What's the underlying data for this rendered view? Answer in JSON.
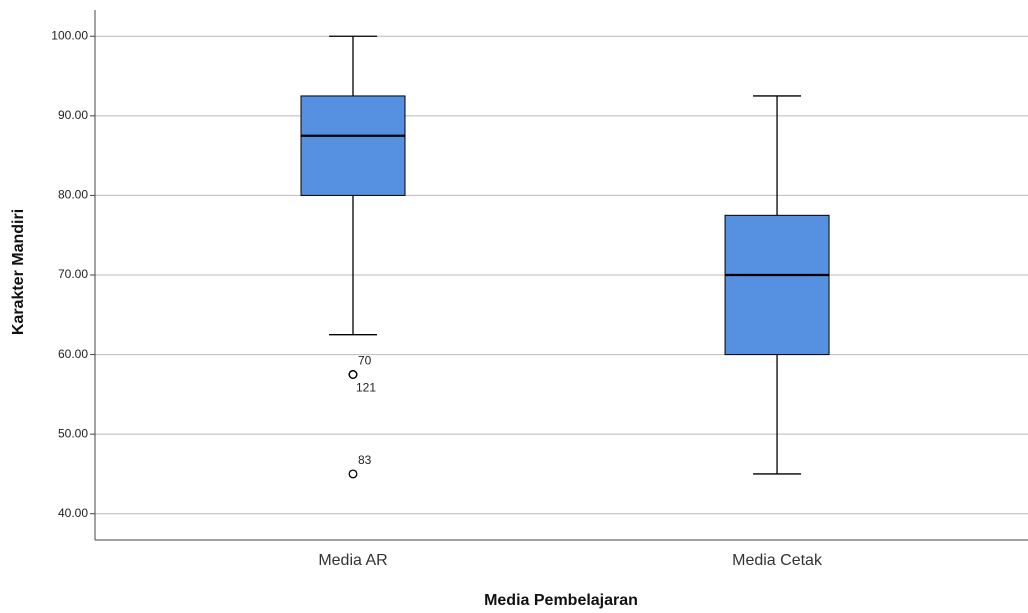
{
  "chart_data": {
    "type": "box",
    "x_label": "Media Pembelajaran",
    "y_label": "Karakter Mandiri",
    "categories": [
      "Media AR",
      "Media Cetak"
    ],
    "color": "#5591e0",
    "boxes": [
      {
        "min": 62.5,
        "q1": 80,
        "median": 87.5,
        "q3": 92.5,
        "max": 100,
        "outliers": [
          {
            "value": 57.5,
            "label": "70"
          },
          {
            "value": 57.5,
            "label": "121"
          },
          {
            "value": 45,
            "label": "83"
          }
        ]
      },
      {
        "min": 45,
        "q1": 60,
        "median": 70,
        "q3": 77.5,
        "max": 92.5,
        "outliers": []
      }
    ],
    "ylim": [
      36.7,
      103.3
    ],
    "yticks": [
      {
        "value": 40,
        "label": "40.00"
      },
      {
        "value": 50,
        "label": "50.00"
      },
      {
        "value": 60,
        "label": "60.00"
      },
      {
        "value": 70,
        "label": "70.00"
      },
      {
        "value": 80,
        "label": "80.00"
      },
      {
        "value": 90,
        "label": "90.00"
      },
      {
        "value": 100,
        "label": "100.00"
      }
    ],
    "grid": true
  }
}
